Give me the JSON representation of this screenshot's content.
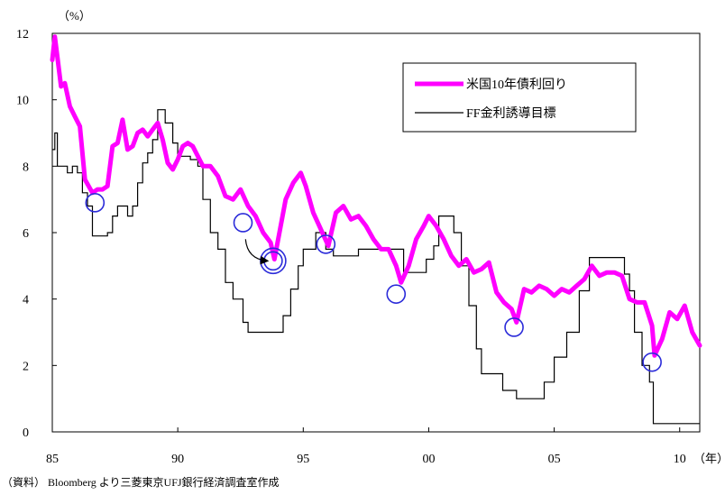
{
  "chart_data": {
    "type": "line",
    "ylabel_unit": "（%）",
    "xlabel_unit": "（年）",
    "ylim": [
      0,
      12
    ],
    "xlim": [
      1985,
      2010.8
    ],
    "y_ticks": [
      0,
      2,
      4,
      6,
      8,
      10,
      12
    ],
    "x_ticks": [
      {
        "value": 1985,
        "label": "85"
      },
      {
        "value": 1990,
        "label": "90"
      },
      {
        "value": 1995,
        "label": "95"
      },
      {
        "value": 2000,
        "label": "00"
      },
      {
        "value": 2005,
        "label": "05"
      },
      {
        "value": 2010,
        "label": "10"
      }
    ],
    "legend_position": "top-right",
    "grid": false,
    "series": [
      {
        "name": "米国10年債利回り",
        "color": "#ff00ff",
        "style": "thick",
        "x": [
          1985.0,
          1985.1,
          1985.2,
          1985.35,
          1985.5,
          1985.7,
          1985.9,
          1986.1,
          1986.3,
          1986.6,
          1986.8,
          1987.0,
          1987.2,
          1987.4,
          1987.6,
          1987.8,
          1988.0,
          1988.2,
          1988.4,
          1988.6,
          1988.8,
          1989.0,
          1989.2,
          1989.4,
          1989.6,
          1989.8,
          1990.0,
          1990.2,
          1990.4,
          1990.6,
          1990.8,
          1991.0,
          1991.3,
          1991.6,
          1991.9,
          1992.2,
          1992.5,
          1992.8,
          1993.1,
          1993.4,
          1993.7,
          1993.85,
          1994.0,
          1994.3,
          1994.6,
          1994.9,
          1995.1,
          1995.4,
          1995.7,
          1996.0,
          1996.3,
          1996.6,
          1996.9,
          1997.2,
          1997.5,
          1997.8,
          1998.1,
          1998.4,
          1998.7,
          1998.9,
          1999.2,
          1999.5,
          1999.8,
          2000.0,
          2000.3,
          2000.6,
          2000.9,
          2001.2,
          2001.5,
          2001.8,
          2002.1,
          2002.4,
          2002.7,
          2003.0,
          2003.3,
          2003.5,
          2003.8,
          2004.1,
          2004.4,
          2004.7,
          2005.0,
          2005.3,
          2005.6,
          2005.9,
          2006.2,
          2006.5,
          2006.8,
          2007.1,
          2007.4,
          2007.7,
          2008.0,
          2008.3,
          2008.6,
          2008.9,
          2009.0,
          2009.3,
          2009.6,
          2009.9,
          2010.2,
          2010.5,
          2010.8
        ],
        "y": [
          11.2,
          11.9,
          11.3,
          10.4,
          10.5,
          9.8,
          9.5,
          9.2,
          7.6,
          7.2,
          7.3,
          7.3,
          7.4,
          8.6,
          8.7,
          9.4,
          8.5,
          8.6,
          9.0,
          9.1,
          8.9,
          9.1,
          9.3,
          8.8,
          8.1,
          7.9,
          8.2,
          8.6,
          8.7,
          8.6,
          8.3,
          8.0,
          8.0,
          7.7,
          7.1,
          7.0,
          7.3,
          6.8,
          6.5,
          6.0,
          5.7,
          5.2,
          5.8,
          7.0,
          7.5,
          7.8,
          7.4,
          6.6,
          6.1,
          5.6,
          6.6,
          6.8,
          6.4,
          6.5,
          6.2,
          5.8,
          5.5,
          5.5,
          5.0,
          4.5,
          5.0,
          5.8,
          6.2,
          6.5,
          6.2,
          5.8,
          5.3,
          5.0,
          5.2,
          4.8,
          4.9,
          5.1,
          4.2,
          3.9,
          3.7,
          3.3,
          4.3,
          4.2,
          4.4,
          4.3,
          4.1,
          4.3,
          4.2,
          4.4,
          4.6,
          5.0,
          4.7,
          4.8,
          4.8,
          4.7,
          4.0,
          3.9,
          3.9,
          3.2,
          2.3,
          2.8,
          3.6,
          3.4,
          3.8,
          3.0,
          2.6
        ]
      },
      {
        "name": "FF金利誘導目標",
        "color": "#000000",
        "style": "thin",
        "x": [
          1985.0,
          1985.1,
          1985.2,
          1985.4,
          1985.6,
          1985.8,
          1986.0,
          1986.2,
          1986.4,
          1986.6,
          1986.9,
          1987.2,
          1987.4,
          1987.6,
          1987.8,
          1988.0,
          1988.2,
          1988.4,
          1988.6,
          1988.8,
          1989.0,
          1989.2,
          1989.5,
          1989.8,
          1990.0,
          1990.5,
          1990.8,
          1991.0,
          1991.3,
          1991.6,
          1991.9,
          1992.2,
          1992.6,
          1992.8,
          1993.2,
          1993.6,
          1994.0,
          1994.2,
          1994.5,
          1994.8,
          1995.0,
          1995.5,
          1995.9,
          1996.2,
          1997.0,
          1997.2,
          1998.0,
          1998.8,
          1999.0,
          1999.5,
          1999.9,
          2000.2,
          2000.4,
          2000.9,
          2001.0,
          2001.3,
          2001.6,
          2001.9,
          2002.1,
          2002.8,
          2002.95,
          2003.5,
          2004.3,
          2004.6,
          2005.0,
          2005.5,
          2006.0,
          2006.4,
          2007.0,
          2007.6,
          2007.8,
          2008.0,
          2008.2,
          2008.5,
          2008.8,
          2008.95,
          2009.0,
          2010.8
        ],
        "y": [
          8.5,
          9.0,
          8.0,
          8.0,
          7.8,
          8.0,
          7.8,
          7.2,
          6.8,
          5.9,
          5.9,
          6.0,
          6.5,
          6.8,
          6.8,
          6.5,
          6.8,
          7.5,
          8.1,
          8.4,
          8.8,
          9.7,
          9.3,
          8.7,
          8.3,
          8.2,
          8.0,
          7.0,
          6.0,
          5.5,
          4.5,
          4.0,
          3.3,
          3.0,
          3.0,
          3.0,
          3.0,
          3.5,
          4.3,
          5.0,
          5.5,
          6.0,
          5.5,
          5.3,
          5.3,
          5.5,
          5.5,
          5.5,
          4.8,
          4.8,
          5.2,
          5.6,
          6.5,
          6.5,
          6.0,
          5.0,
          3.8,
          2.5,
          1.75,
          1.75,
          1.25,
          1.0,
          1.0,
          1.5,
          2.25,
          3.0,
          4.25,
          5.25,
          5.25,
          5.25,
          4.75,
          4.25,
          3.0,
          2.0,
          1.5,
          0.25,
          0.25,
          0.25
        ]
      }
    ],
    "circle_markers": [
      {
        "x": 1986.7,
        "y": 6.9
      },
      {
        "x": 1992.6,
        "y": 6.3
      },
      {
        "x": 1993.8,
        "y": 5.15,
        "double": true
      },
      {
        "x": 1995.9,
        "y": 5.65
      },
      {
        "x": 1998.7,
        "y": 4.15
      },
      {
        "x": 2003.4,
        "y": 3.15
      },
      {
        "x": 2008.9,
        "y": 2.1
      }
    ],
    "arrow": {
      "from": {
        "x": 1992.7,
        "y": 5.8
      },
      "to": {
        "x": 1993.55,
        "y": 5.15
      }
    },
    "marker_color": "#2b2bd9",
    "source_note": "（資料） Bloomberg より三菱東京UFJ銀行経済調査室作成"
  }
}
